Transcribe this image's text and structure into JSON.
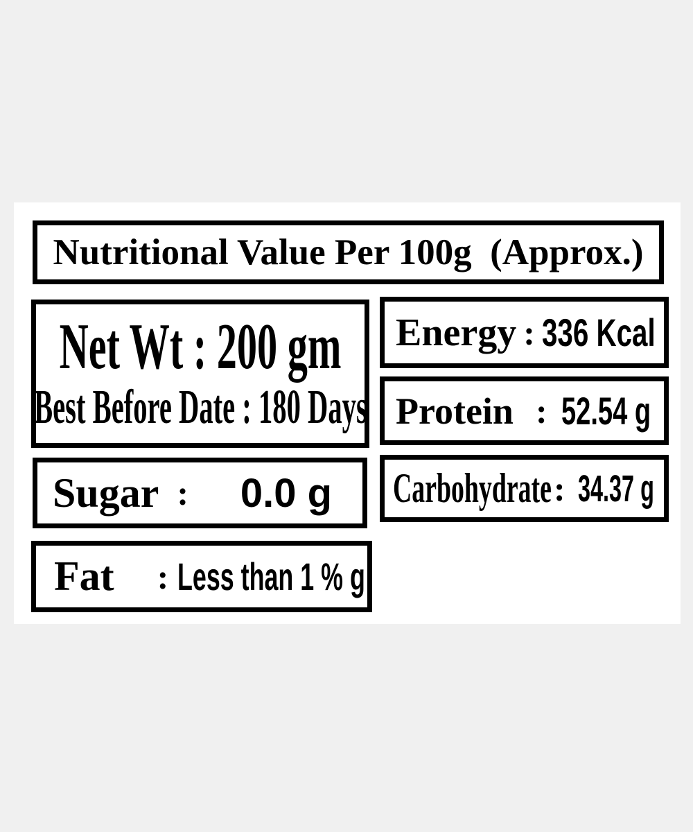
{
  "colors": {
    "page_bg": "#f0f0f0",
    "label_bg": "#ffffff",
    "text_and_border": "#000000"
  },
  "title": "Nutritional Value Per 100g  (Approx.)",
  "left_column": {
    "net_wt_line": "Net Wt : 200 gm",
    "best_before_line": "Best Before Date : 180 Days",
    "sugar": {
      "label": "Sugar",
      "colon": ":",
      "value": "0.0 g"
    },
    "fat": {
      "label": "Fat",
      "colon": ":",
      "value": "Less than 1 % g"
    }
  },
  "right_column": {
    "energy": {
      "label": "Energy",
      "colon": ":",
      "value": "336 Kcal"
    },
    "protein": {
      "label": "Protein",
      "colon": ":",
      "value": "52.54 g"
    },
    "carbohydrate": {
      "label": "Carbohydrate",
      "colon": ":",
      "value": "34.37 g"
    }
  }
}
